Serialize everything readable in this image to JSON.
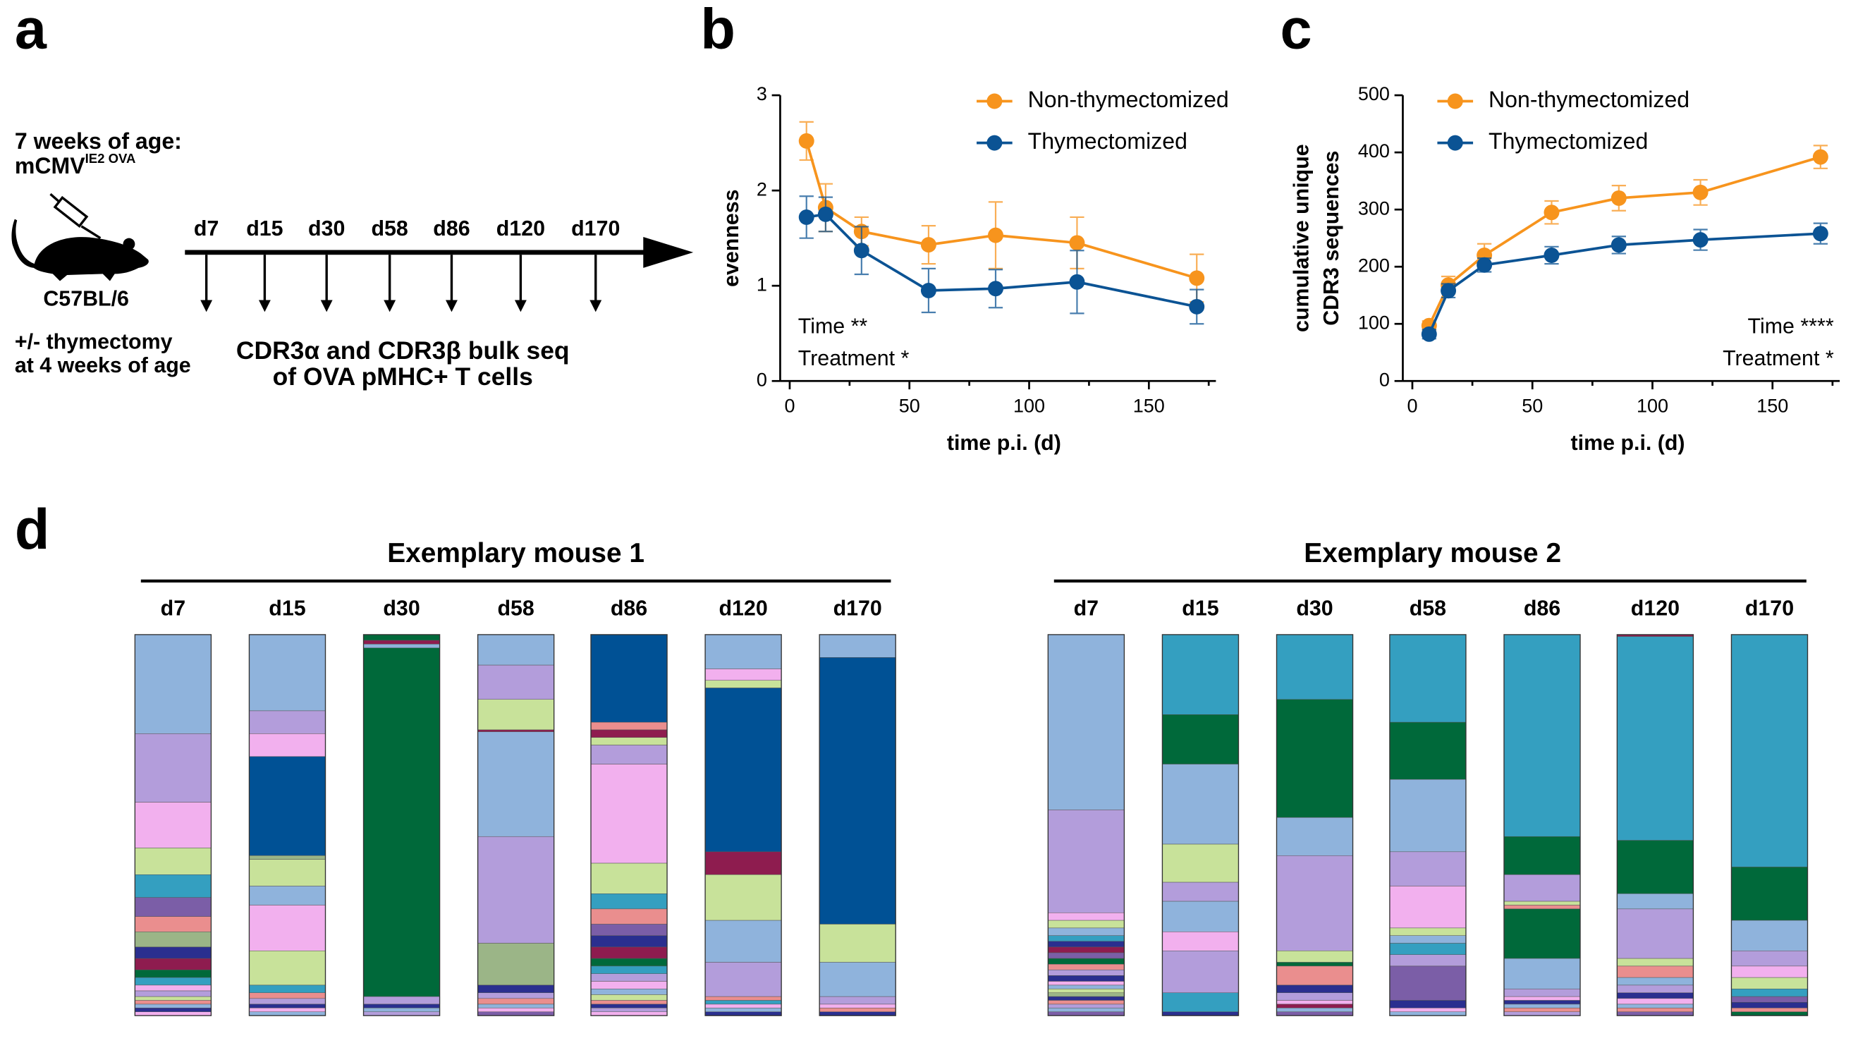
{
  "panel_labels": [
    "a",
    "b",
    "c",
    "d"
  ],
  "diagram": {
    "age_line1": "7 weeks of age:",
    "virus": "mCMV",
    "virus_superscript": "IE2 OVA",
    "strain": "C57BL/6",
    "treatment_line1": "+/- thymectomy",
    "treatment_line2": "at 4 weeks of age",
    "timepoints": [
      "d7",
      "d15",
      "d30",
      "d58",
      "d86",
      "d120",
      "d170"
    ],
    "readout_line1": "CDR3α and CDR3β bulk seq",
    "readout_line2": "of OVA pMHC+ T cells"
  },
  "chart_data": [
    {
      "type": "line",
      "xlabel": "time p.i. (d)",
      "ylabel": [
        "evenness"
      ],
      "x": [
        7,
        15,
        30,
        58,
        86,
        120,
        170
      ],
      "series": [
        {
          "name": "Non-thymectomized",
          "color": "#f7941d",
          "values": [
            2.52,
            1.82,
            1.57,
            1.43,
            1.53,
            1.45,
            1.08
          ],
          "errors": [
            0.2,
            0.25,
            0.15,
            0.2,
            0.35,
            0.27,
            0.25
          ]
        },
        {
          "name": "Thymectomized",
          "color": "#0b5394",
          "values": [
            1.72,
            1.75,
            1.37,
            0.95,
            0.97,
            1.04,
            0.78
          ],
          "errors": [
            0.22,
            0.18,
            0.25,
            0.23,
            0.2,
            0.33,
            0.18
          ]
        }
      ],
      "xlim": [
        0,
        178
      ],
      "xticks": [
        0,
        50,
        100,
        150
      ],
      "ylim": [
        0,
        3
      ],
      "yticks": [
        0,
        1,
        2,
        3
      ],
      "annotations": [
        "Time **",
        "Treatment *"
      ],
      "legend": "upper right"
    },
    {
      "type": "line",
      "xlabel": "time p.i. (d)",
      "ylabel": [
        "cumulative unique",
        "CDR3 sequences"
      ],
      "x": [
        7,
        15,
        30,
        58,
        86,
        120,
        170
      ],
      "series": [
        {
          "name": "Non-thymectomized",
          "color": "#f7941d",
          "values": [
            97,
            168,
            220,
            295,
            320,
            330,
            392
          ],
          "errors": [
            8,
            15,
            20,
            20,
            22,
            22,
            20
          ]
        },
        {
          "name": "Thymectomized",
          "color": "#0b5394",
          "values": [
            82,
            158,
            203,
            220,
            238,
            247,
            258
          ],
          "errors": [
            8,
            12,
            12,
            15,
            15,
            18,
            18
          ]
        }
      ],
      "xlim": [
        0,
        178
      ],
      "xticks": [
        0,
        50,
        100,
        150
      ],
      "ylim": [
        0,
        500
      ],
      "yticks": [
        0,
        100,
        200,
        300,
        400,
        500
      ],
      "annotations": [
        "Time ****",
        "Treatment *"
      ],
      "legend": "upper left"
    },
    {
      "type": "stacked_bar",
      "title": "Exemplary mouse 1",
      "ylim": [
        0,
        100
      ],
      "categories": [
        "d7",
        "d15",
        "d30",
        "d58",
        "d86",
        "d120",
        "d170"
      ],
      "stacks": [
        {
          "values": [
            26,
            18,
            12,
            7,
            6,
            5,
            4,
            4,
            3,
            3,
            2,
            2,
            1.5,
            1.5,
            1,
            1,
            1,
            1,
            1
          ],
          "colors": [
            "#8fb3dc",
            "#b39ddb",
            "#f2b0ee",
            "#c8e29a",
            "#349fc0",
            "#7b5ea7",
            "#ea8e8e",
            "#9bb587",
            "#2a2f8f",
            "#8e1c4f",
            "#00693a",
            "#349fc0",
            "#f2b0ee",
            "#b39ddb",
            "#c8e29a",
            "#ea8e8e",
            "#8fb3dc",
            "#2a2f8f",
            "#f2b0ee"
          ]
        },
        {
          "values": [
            20,
            6,
            6,
            26,
            1,
            7,
            5,
            12,
            9,
            2,
            1.5,
            1.5,
            1,
            1,
            1
          ],
          "colors": [
            "#8fb3dc",
            "#b39ddb",
            "#f2b0ee",
            "#005195",
            "#9bb587",
            "#c8e29a",
            "#8fb3dc",
            "#f2b0ee",
            "#c8e29a",
            "#349fc0",
            "#ea8e8e",
            "#b39ddb",
            "#2a2f8f",
            "#f2b0ee",
            "#8fb3dc"
          ]
        },
        {
          "values": [
            1.5,
            1,
            1,
            91.5,
            2,
            1,
            1,
            1
          ],
          "colors": [
            "#00693a",
            "#8e1c4f",
            "#8fb3dc",
            "#00693a",
            "#b39ddb",
            "#2a2f8f",
            "#8fb3dc",
            "#b39ddb"
          ]
        },
        {
          "values": [
            8,
            9,
            8,
            0.5,
            27.5,
            28,
            11,
            2,
            1.5,
            1.5,
            1,
            1,
            1
          ],
          "colors": [
            "#8fb3dc",
            "#b39ddb",
            "#c8e29a",
            "#8e1c4f",
            "#8fb3dc",
            "#b39ddb",
            "#9bb587",
            "#2a2f8f",
            "#b39ddb",
            "#ea8e8e",
            "#8fb3dc",
            "#f2b0ee",
            "#7b5ea7"
          ]
        },
        {
          "values": [
            23,
            2,
            2,
            2,
            5,
            26,
            8,
            4,
            4,
            3,
            3,
            3,
            2,
            2,
            2,
            2,
            1.5,
            1.5,
            1,
            1,
            1,
            1
          ],
          "colors": [
            "#005195",
            "#ea8e8e",
            "#8e1c4f",
            "#c8e29a",
            "#b39ddb",
            "#f2b0ee",
            "#c8e29a",
            "#349fc0",
            "#ea8e8e",
            "#7b5ea7",
            "#2a2f8f",
            "#8e1c4f",
            "#00693a",
            "#349fc0",
            "#b39ddb",
            "#f2b0ee",
            "#8fb3dc",
            "#c8e29a",
            "#ea8e8e",
            "#2a2f8f",
            "#b39ddb",
            "#f2b0ee"
          ]
        },
        {
          "values": [
            9,
            3,
            2,
            43,
            6,
            12,
            11,
            9,
            1,
            1,
            1,
            1,
            1
          ],
          "colors": [
            "#8fb3dc",
            "#f2b0ee",
            "#c8e29a",
            "#005195",
            "#8e1c4f",
            "#c8e29a",
            "#8fb3dc",
            "#b39ddb",
            "#ea8e8e",
            "#349fc0",
            "#f2b0ee",
            "#8fb3dc",
            "#2a2f8f"
          ]
        },
        {
          "values": [
            6,
            70,
            10,
            9,
            2,
            1,
            1,
            1
          ],
          "colors": [
            "#8fb3dc",
            "#005195",
            "#c8e29a",
            "#8fb3dc",
            "#b39ddb",
            "#f2b0ee",
            "#ea8e8e",
            "#2a2f8f"
          ]
        }
      ]
    },
    {
      "type": "stacked_bar",
      "title": "Exemplary mouse 2",
      "ylim": [
        0,
        100
      ],
      "categories": [
        "d7",
        "d15",
        "d30",
        "d58",
        "d86",
        "d120",
        "d170"
      ],
      "stacks": [
        {
          "values": [
            46,
            27,
            2,
            2,
            2,
            1.5,
            1.5,
            1.5,
            1.5,
            1.5,
            1.5,
            1.5,
            1.5,
            1,
            1,
            1,
            1,
            1,
            1,
            1,
            1,
            1
          ],
          "colors": [
            "#8fb3dc",
            "#b39ddb",
            "#f2b0ee",
            "#c8e29a",
            "#8fb3dc",
            "#349fc0",
            "#2a2f8f",
            "#8e1c4f",
            "#7b5ea7",
            "#00693a",
            "#ea8e8e",
            "#b39ddb",
            "#2a2f8f",
            "#f2b0ee",
            "#8fb3dc",
            "#c8e29a",
            "#9bb587",
            "#2a2f8f",
            "#ea8e8e",
            "#b39ddb",
            "#8fb3dc",
            "#7b5ea7"
          ]
        },
        {
          "values": [
            21,
            13,
            21,
            10,
            5,
            8,
            5,
            11,
            5,
            1
          ],
          "colors": [
            "#349fc0",
            "#00693a",
            "#8fb3dc",
            "#c8e29a",
            "#b39ddb",
            "#8fb3dc",
            "#f2b0ee",
            "#b39ddb",
            "#349fc0",
            "#2a2f8f"
          ]
        },
        {
          "values": [
            17,
            31,
            10,
            25,
            3,
            1,
            5,
            2,
            2,
            1,
            1,
            1,
            1
          ],
          "colors": [
            "#349fc0",
            "#00693a",
            "#8fb3dc",
            "#b39ddb",
            "#c8e29a",
            "#00693a",
            "#ea8e8e",
            "#2a2f8f",
            "#b39ddb",
            "#f2b0ee",
            "#8e1c4f",
            "#8fb3dc",
            "#7b5ea7"
          ]
        },
        {
          "values": [
            23,
            15,
            19,
            9,
            11,
            2,
            2,
            3,
            3,
            9,
            2,
            1,
            1
          ],
          "colors": [
            "#349fc0",
            "#00693a",
            "#8fb3dc",
            "#b39ddb",
            "#f2b0ee",
            "#c8e29a",
            "#8fb3dc",
            "#349fc0",
            "#b39ddb",
            "#7b5ea7",
            "#2a2f8f",
            "#f2b0ee",
            "#8fb3dc"
          ]
        },
        {
          "values": [
            53,
            10,
            7,
            1,
            1,
            13,
            8,
            2,
            1,
            1,
            1,
            1,
            1
          ],
          "colors": [
            "#349fc0",
            "#00693a",
            "#b39ddb",
            "#c8e29a",
            "#ea8e8e",
            "#00693a",
            "#8fb3dc",
            "#b39ddb",
            "#f2b0ee",
            "#2a2f8f",
            "#8fb3dc",
            "#ea8e8e",
            "#b39ddb"
          ]
        },
        {
          "values": [
            0.5,
            53.5,
            14,
            4,
            13,
            2,
            3,
            2,
            2,
            1.5,
            1.5,
            1,
            1,
            1
          ],
          "colors": [
            "#8e1c4f",
            "#349fc0",
            "#00693a",
            "#8fb3dc",
            "#b39ddb",
            "#c8e29a",
            "#ea8e8e",
            "#8fb3dc",
            "#b39ddb",
            "#2a2f8f",
            "#f2b0ee",
            "#8fb3dc",
            "#ea8e8e",
            "#7b5ea7"
          ]
        },
        {
          "values": [
            61,
            14,
            8,
            4,
            3,
            3,
            2,
            1.5,
            1.5,
            1,
            1
          ],
          "colors": [
            "#349fc0",
            "#00693a",
            "#8fb3dc",
            "#b39ddb",
            "#f2b0ee",
            "#c8e29a",
            "#349fc0",
            "#7b5ea7",
            "#2a2f8f",
            "#ea8e8e",
            "#00693a"
          ]
        }
      ]
    }
  ]
}
